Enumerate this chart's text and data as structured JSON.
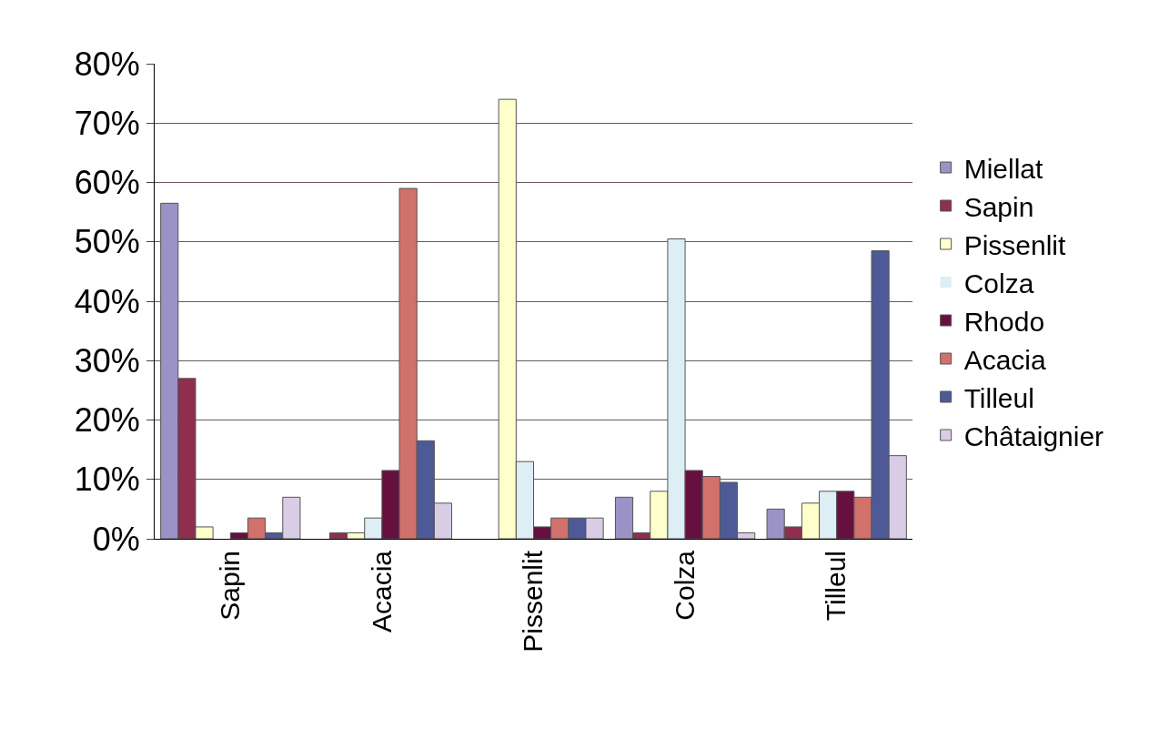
{
  "chart_data": {
    "type": "bar",
    "categories": [
      "Sapin",
      "Acacia",
      "Pissenlit",
      "Colza",
      "Tilleul"
    ],
    "series": [
      {
        "name": "Miellat",
        "color": "#9b93c6",
        "values": [
          56.5,
          0,
          0,
          7,
          5
        ]
      },
      {
        "name": "Sapin",
        "color": "#8e2f4f",
        "values": [
          27,
          1,
          0,
          1,
          2
        ]
      },
      {
        "name": "Pissenlit",
        "color": "#ffffcc",
        "values": [
          2,
          1,
          74,
          8,
          6
        ]
      },
      {
        "name": "Colza",
        "color": "#ddeef5",
        "values": [
          0,
          3.5,
          13,
          50.5,
          8
        ]
      },
      {
        "name": "Rhodo",
        "color": "#661040",
        "values": [
          1,
          11.5,
          2,
          11.5,
          8
        ]
      },
      {
        "name": "Acacia",
        "color": "#d0716b",
        "values": [
          3.5,
          59,
          3.5,
          10.5,
          7
        ]
      },
      {
        "name": "Tilleul",
        "color": "#4e5a97",
        "values": [
          1,
          16.5,
          3.5,
          9.5,
          48.5
        ]
      },
      {
        "name": "Châtaignier",
        "color": "#d9cde6",
        "values": [
          7,
          6,
          3.5,
          1,
          14
        ]
      }
    ],
    "ylim": [
      0,
      80
    ],
    "yticks": [
      {
        "value": 0,
        "label": "0%"
      },
      {
        "value": 10,
        "label": "10%"
      },
      {
        "value": 20,
        "label": "20%"
      },
      {
        "value": 30,
        "label": "30%"
      },
      {
        "value": 40,
        "label": "40%"
      },
      {
        "value": 50,
        "label": "50%"
      },
      {
        "value": 60,
        "label": "60%"
      },
      {
        "value": 70,
        "label": "70%"
      },
      {
        "value": 80,
        "label": "80%"
      }
    ],
    "grid": "y",
    "legend": "right"
  }
}
